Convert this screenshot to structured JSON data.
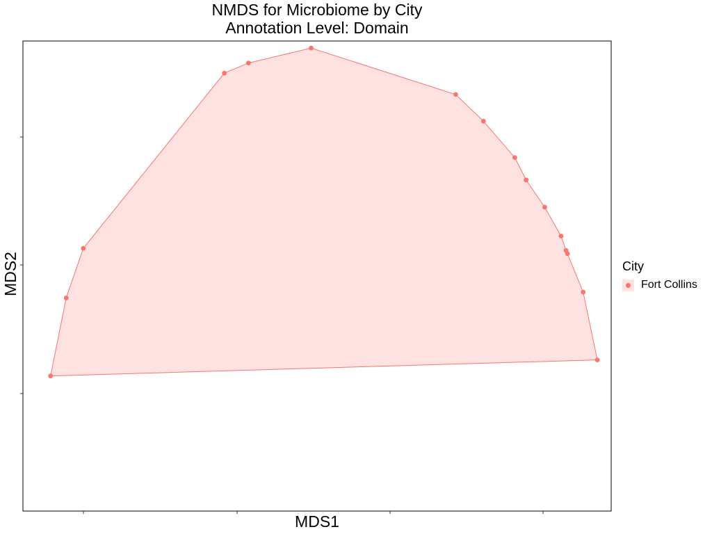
{
  "chart_data": {
    "type": "scatter",
    "title": "NMDS for Microbiome by City",
    "subtitle": "Annotation Level: Domain",
    "xlabel": "MDS1",
    "ylabel": "MDS2",
    "grid": false,
    "x_ticks": 4,
    "y_ticks": 3,
    "legend": {
      "title": "City",
      "placement": "right",
      "entries": [
        "Fort Collins"
      ]
    },
    "series": [
      {
        "name": "Fort Collins",
        "color": "#F8766D",
        "fill": "#FDE2E1",
        "hull": true,
        "points": [
          {
            "x": 0.071,
            "y": 0.704
          },
          {
            "x": 0.093,
            "y": 0.558
          },
          {
            "x": 0.117,
            "y": 0.465
          },
          {
            "x": 0.315,
            "y": 0.137
          },
          {
            "x": 0.349,
            "y": 0.118
          },
          {
            "x": 0.437,
            "y": 0.09
          },
          {
            "x": 0.64,
            "y": 0.177
          },
          {
            "x": 0.679,
            "y": 0.227
          },
          {
            "x": 0.723,
            "y": 0.295
          },
          {
            "x": 0.739,
            "y": 0.337
          },
          {
            "x": 0.765,
            "y": 0.388
          },
          {
            "x": 0.788,
            "y": 0.442
          },
          {
            "x": 0.795,
            "y": 0.469
          },
          {
            "x": 0.797,
            "y": 0.475
          },
          {
            "x": 0.819,
            "y": 0.547
          },
          {
            "x": 0.839,
            "y": 0.674
          }
        ]
      }
    ]
  }
}
